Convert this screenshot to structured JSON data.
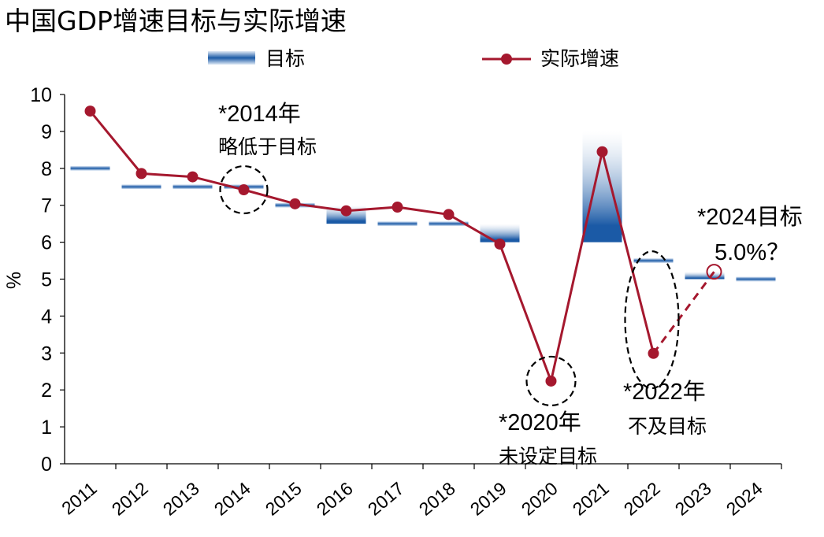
{
  "chart_data": {
    "type": "bar+line",
    "title": "中国GDP增速目标与实际增速",
    "ylabel": "%",
    "ylim": [
      0,
      10
    ],
    "yticks": [
      "0",
      "1",
      "2",
      "3",
      "4",
      "5",
      "6",
      "7",
      "8",
      "9",
      "10"
    ],
    "categories": [
      "2011",
      "2012",
      "2013",
      "2014",
      "2015",
      "2016",
      "2017",
      "2018",
      "2019",
      "2020",
      "2021",
      "2022",
      "2023",
      "2024"
    ],
    "legend_position": "top",
    "series": [
      {
        "name": "目标",
        "kind": "target-band",
        "color": "#1b5aa6",
        "ranges": [
          [
            8,
            8
          ],
          [
            7.5,
            7.5
          ],
          [
            7.5,
            7.5
          ],
          [
            7.5,
            7.5
          ],
          [
            7,
            7
          ],
          [
            6.5,
            7
          ],
          [
            6.5,
            6.5
          ],
          [
            6.5,
            6.5
          ],
          [
            6,
            6.5
          ],
          null,
          [
            6,
            9
          ],
          [
            5.5,
            5.5
          ],
          [
            5,
            5.2
          ],
          [
            5,
            5
          ]
        ]
      },
      {
        "name": "实际增速",
        "kind": "line",
        "color": "#a5182e",
        "values": [
          9.55,
          7.86,
          7.77,
          7.42,
          7.04,
          6.85,
          6.95,
          6.75,
          5.95,
          2.24,
          8.45,
          2.99,
          null,
          null
        ]
      }
    ],
    "projection": {
      "from": "2022",
      "to": "2023",
      "from_value": 2.99,
      "to_value": 5.2,
      "style": "dashed"
    },
    "annotations": [
      {
        "line1": "*2014年",
        "line2": "略低于目标",
        "category": "2014",
        "value": 7.42
      },
      {
        "line1": "*2020年",
        "line2": "未设定目标",
        "category": "2020",
        "value": 2.24
      },
      {
        "line1": "*2022年",
        "line2": "不及目标",
        "category": "2022",
        "value": 3.9
      },
      {
        "line1": "*2024目标",
        "line2": "5.0%？",
        "category": "2023",
        "value": 5.2
      }
    ]
  }
}
